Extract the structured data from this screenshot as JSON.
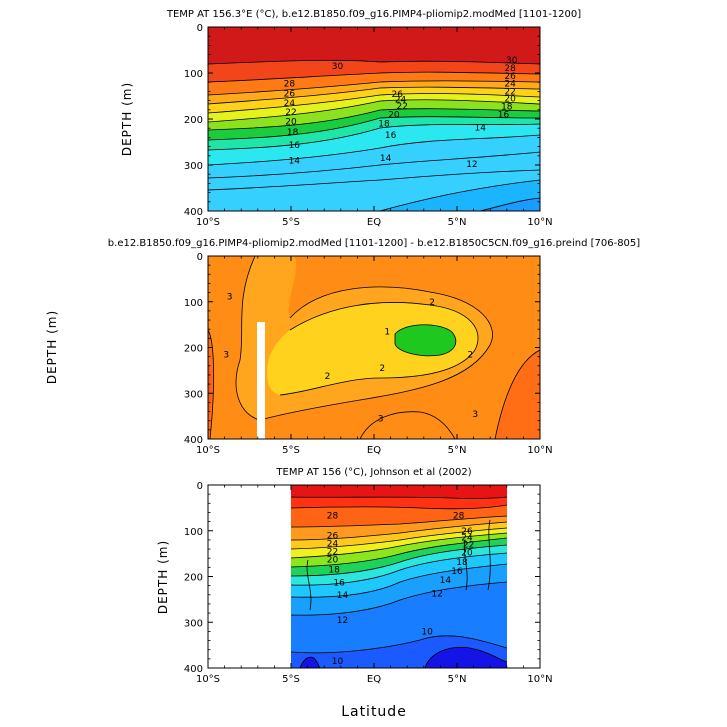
{
  "figure": {
    "xlabel": "Latitude"
  },
  "chart_data": [
    {
      "type": "heatmap",
      "subtype": "filled-contour",
      "title": "TEMP AT 156.3°E (°C), b.e12.B1850.f09_g16.PIMP4-pliomip2.modMed [1101-1200]",
      "xlabel": "",
      "ylabel": "DEPTH (m)",
      "xlim": [
        -10,
        10
      ],
      "ylim": [
        400,
        0
      ],
      "xticks": [
        -10,
        -5,
        0,
        5,
        10
      ],
      "xtick_labels": [
        "10°S",
        "5°S",
        "EQ",
        "5°N",
        "10°N"
      ],
      "yticks": [
        0,
        100,
        200,
        300,
        400
      ],
      "ytick_labels": [
        "0",
        "100",
        "200",
        "300",
        "400"
      ],
      "contour_labels": [
        {
          "text": "30",
          "lat": -2.2,
          "depth": 85
        },
        {
          "text": "28",
          "lat": -5.1,
          "depth": 123
        },
        {
          "text": "26",
          "lat": -5.1,
          "depth": 145
        },
        {
          "text": "24",
          "lat": -5.1,
          "depth": 165
        },
        {
          "text": "22",
          "lat": -5.0,
          "depth": 185
        },
        {
          "text": "20",
          "lat": -5.0,
          "depth": 205
        },
        {
          "text": "18",
          "lat": -4.9,
          "depth": 228
        },
        {
          "text": "16",
          "lat": -4.8,
          "depth": 257
        },
        {
          "text": "14",
          "lat": -4.8,
          "depth": 290
        },
        {
          "text": "30",
          "lat": 8.3,
          "depth": 72
        },
        {
          "text": "28",
          "lat": 8.2,
          "depth": 89
        },
        {
          "text": "26",
          "lat": 8.2,
          "depth": 107
        },
        {
          "text": "24",
          "lat": 8.2,
          "depth": 123
        },
        {
          "text": "22",
          "lat": 8.2,
          "depth": 140
        },
        {
          "text": "20",
          "lat": 8.2,
          "depth": 155
        },
        {
          "text": "18",
          "lat": 8.0,
          "depth": 173
        },
        {
          "text": "16",
          "lat": 7.8,
          "depth": 190
        },
        {
          "text": "14",
          "lat": 6.4,
          "depth": 218
        },
        {
          "text": "26",
          "lat": 1.4,
          "depth": 146
        },
        {
          "text": "24",
          "lat": 1.6,
          "depth": 158
        },
        {
          "text": "22",
          "lat": 1.7,
          "depth": 172
        },
        {
          "text": "20",
          "lat": 1.2,
          "depth": 190
        },
        {
          "text": "18",
          "lat": 0.6,
          "depth": 210
        },
        {
          "text": "16",
          "lat": 1.0,
          "depth": 235
        },
        {
          "text": "14",
          "lat": 0.7,
          "depth": 285
        },
        {
          "text": "12",
          "lat": 5.9,
          "depth": 298
        }
      ]
    },
    {
      "type": "heatmap",
      "subtype": "filled-contour-difference",
      "title": "b.e12.B1850.f09_g16.PIMP4-pliomip2.modMed [1101-1200] - b.e12.B1850C5CN.f09_g16.preind [706-805]",
      "xlabel": "",
      "ylabel": "DEPTH (m)",
      "xlim": [
        -10,
        10
      ],
      "ylim": [
        400,
        0
      ],
      "xticks": [
        -10,
        -5,
        0,
        5,
        10
      ],
      "xtick_labels": [
        "10°S",
        "5°S",
        "EQ",
        "5°N",
        "10°N"
      ],
      "yticks": [
        0,
        100,
        200,
        300,
        400
      ],
      "ytick_labels": [
        "0",
        "100",
        "200",
        "300",
        "400"
      ],
      "contour_labels": [
        {
          "text": "3",
          "lat": -8.7,
          "depth": 88
        },
        {
          "text": "3",
          "lat": -8.9,
          "depth": 215
        },
        {
          "text": "2",
          "lat": 3.5,
          "depth": 100
        },
        {
          "text": "1",
          "lat": 0.8,
          "depth": 165
        },
        {
          "text": "2",
          "lat": 5.8,
          "depth": 215
        },
        {
          "text": "2",
          "lat": 0.5,
          "depth": 245
        },
        {
          "text": "2",
          "lat": -2.8,
          "depth": 262
        },
        {
          "text": "3",
          "lat": 0.4,
          "depth": 355
        },
        {
          "text": "3",
          "lat": 6.1,
          "depth": 345
        }
      ]
    },
    {
      "type": "heatmap",
      "subtype": "filled-contour-observations",
      "title": "TEMP AT 156 (°C), Johnson et al (2002)",
      "xlabel": "Latitude",
      "ylabel": "DEPTH (m)",
      "xlim": [
        -10,
        10
      ],
      "ylim": [
        400,
        0
      ],
      "xticks": [
        -10,
        -5,
        0,
        5,
        10
      ],
      "xtick_labels": [
        "10°S",
        "5°S",
        "EQ",
        "5°N",
        "10°N"
      ],
      "yticks": [
        0,
        100,
        200,
        300,
        400
      ],
      "ytick_labels": [
        "0",
        "100",
        "200",
        "300",
        "400"
      ],
      "data_extent": {
        "lat": [
          -5,
          8
        ]
      },
      "contour_labels": [
        {
          "text": "28",
          "lat": -2.5,
          "depth": 67
        },
        {
          "text": "28",
          "lat": 5.1,
          "depth": 67
        },
        {
          "text": "26",
          "lat": -2.5,
          "depth": 110
        },
        {
          "text": "24",
          "lat": -2.5,
          "depth": 128
        },
        {
          "text": "22",
          "lat": -2.5,
          "depth": 145
        },
        {
          "text": "20",
          "lat": -2.5,
          "depth": 163
        },
        {
          "text": "18",
          "lat": -2.4,
          "depth": 185
        },
        {
          "text": "16",
          "lat": -2.1,
          "depth": 213
        },
        {
          "text": "14",
          "lat": -1.9,
          "depth": 240
        },
        {
          "text": "12",
          "lat": -1.9,
          "depth": 295
        },
        {
          "text": "10",
          "lat": -2.2,
          "depth": 385
        },
        {
          "text": "26",
          "lat": 5.6,
          "depth": 100
        },
        {
          "text": "24",
          "lat": 5.6,
          "depth": 115
        },
        {
          "text": "22",
          "lat": 5.7,
          "depth": 130
        },
        {
          "text": "20",
          "lat": 5.6,
          "depth": 148
        },
        {
          "text": "18",
          "lat": 5.3,
          "depth": 168
        },
        {
          "text": "16",
          "lat": 5.0,
          "depth": 188
        },
        {
          "text": "14",
          "lat": 4.3,
          "depth": 208
        },
        {
          "text": "12",
          "lat": 3.8,
          "depth": 237
        },
        {
          "text": "10",
          "lat": 3.2,
          "depth": 320
        }
      ]
    }
  ]
}
